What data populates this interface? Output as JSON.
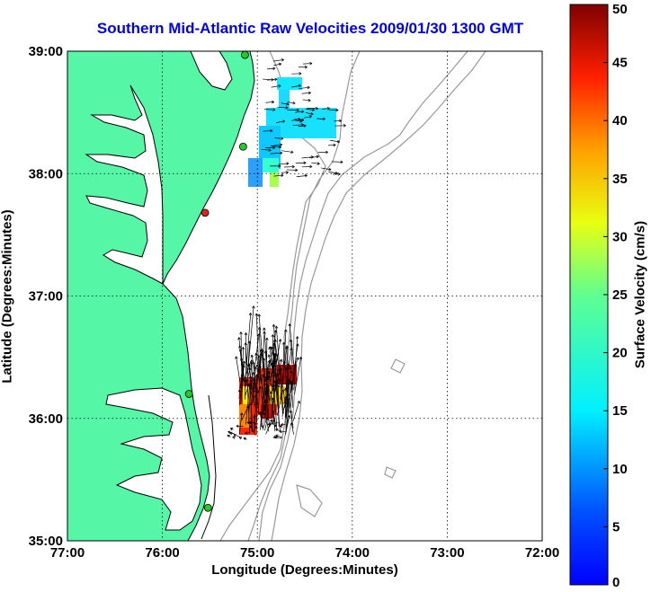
{
  "title": "Southern Mid-Atlantic Raw Velocities 2009/01/30 1300 GMT",
  "x_axis": {
    "label": "Longitude (Degrees:Minutes)",
    "ticks": [
      "77:00",
      "76:00",
      "75:00",
      "74:00",
      "73:00",
      "72:00"
    ]
  },
  "y_axis": {
    "label": "Latitude (Degrees:Minutes)",
    "ticks": [
      "39:00",
      "38:00",
      "37:00",
      "36:00",
      "35:00"
    ]
  },
  "colorbar": {
    "label": "Surface Velocity (cm/s)",
    "ticks": [
      "50",
      "45",
      "40",
      "35",
      "30",
      "25",
      "20",
      "15",
      "10",
      "5",
      "0"
    ],
    "min": 0,
    "max": 50,
    "colormap": "jet"
  },
  "colors": {
    "land": "#55f7a7",
    "title": "#0000ee",
    "bathymetry": "#999999",
    "station_active": "#22cc22",
    "station_inactive": "#dd2222"
  },
  "map": {
    "lon_range": [
      -77,
      -72
    ],
    "lat_range": [
      35,
      39
    ],
    "grid": "dotted",
    "stations": [
      {
        "lat": 38.97,
        "lon": -75.13,
        "status": "active"
      },
      {
        "lat": 38.22,
        "lon": -75.15,
        "status": "active"
      },
      {
        "lat": 37.68,
        "lon": -75.55,
        "status": "inactive"
      },
      {
        "lat": 36.2,
        "lon": -75.72,
        "status": "active"
      },
      {
        "lat": 35.27,
        "lon": -75.52,
        "status": "active"
      }
    ]
  }
}
